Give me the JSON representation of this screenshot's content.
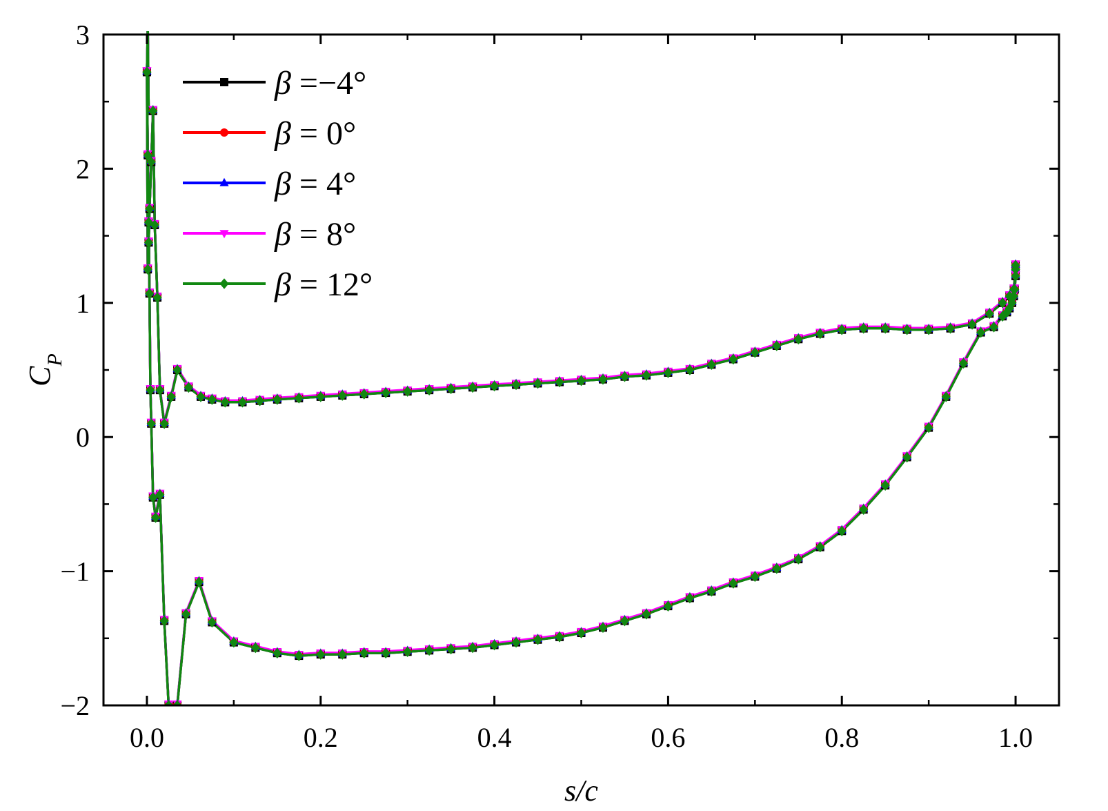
{
  "chart_data": {
    "type": "line",
    "title": "",
    "xlabel": "s/c",
    "ylabel": "C_P",
    "ylabel_main": "C",
    "ylabel_sub": "P",
    "xlim": [
      -0.05,
      1.05
    ],
    "ylim": [
      -2,
      3
    ],
    "x_ticks": [
      0.0,
      0.2,
      0.4,
      0.6,
      0.8,
      1.0
    ],
    "x_tick_labels": [
      "0.0",
      "0.2",
      "0.4",
      "0.6",
      "0.8",
      "1.0"
    ],
    "y_ticks": [
      -2,
      -1,
      0,
      1,
      2,
      3
    ],
    "y_tick_labels": [
      "−2",
      "−1",
      "0",
      "1",
      "2",
      "3"
    ],
    "grid": false,
    "legend_position": "top-left",
    "series": [
      {
        "name": "β =−4°",
        "legend_symbol": "β",
        "legend_rest": " =−4°",
        "color": "#000000",
        "marker": "square",
        "offset": 0.0
      },
      {
        "name": "β = 0°",
        "legend_symbol": "β",
        "legend_rest": " = 0°",
        "color": "#ff0000",
        "marker": "circle",
        "offset": 0.004
      },
      {
        "name": "β = 4°",
        "legend_symbol": "β",
        "legend_rest": " = 4°",
        "color": "#0000ff",
        "marker": "triangle-up",
        "offset": 0.008
      },
      {
        "name": "β = 8°",
        "legend_symbol": "β",
        "legend_rest": " = 8°",
        "color": "#ff00ff",
        "marker": "triangle-down",
        "offset": 0.012
      },
      {
        "name": "β = 12°",
        "legend_symbol": "β",
        "legend_rest": " = 12°",
        "color": "#118811",
        "marker": "diamond",
        "offset": 0.0
      }
    ],
    "curve_x": [
      1.0,
      1.0,
      0.999,
      0.998,
      0.996,
      0.993,
      0.99,
      0.985,
      0.975,
      0.96,
      0.94,
      0.92,
      0.9,
      0.875,
      0.85,
      0.825,
      0.8,
      0.775,
      0.75,
      0.725,
      0.7,
      0.675,
      0.65,
      0.625,
      0.6,
      0.575,
      0.55,
      0.525,
      0.5,
      0.475,
      0.45,
      0.425,
      0.4,
      0.375,
      0.35,
      0.325,
      0.3,
      0.275,
      0.25,
      0.225,
      0.2,
      0.175,
      0.15,
      0.125,
      0.1,
      0.075,
      0.06,
      0.045,
      0.035,
      0.025,
      0.02,
      0.015,
      0.01,
      0.007,
      0.005,
      0.004,
      0.003,
      0.002,
      0.001,
      0.0,
      0.0,
      0.001,
      0.002,
      0.003,
      0.005,
      0.007,
      0.009,
      0.012,
      0.015,
      0.02,
      0.028,
      0.035,
      0.048,
      0.062,
      0.075,
      0.09,
      0.11,
      0.13,
      0.15,
      0.175,
      0.2,
      0.225,
      0.25,
      0.275,
      0.3,
      0.325,
      0.35,
      0.375,
      0.4,
      0.425,
      0.45,
      0.475,
      0.5,
      0.525,
      0.55,
      0.575,
      0.6,
      0.625,
      0.65,
      0.675,
      0.7,
      0.725,
      0.75,
      0.775,
      0.8,
      0.825,
      0.85,
      0.875,
      0.9,
      0.925,
      0.95,
      0.97,
      0.985,
      0.993,
      0.998,
      1.0
    ],
    "curve_y": [
      1.28,
      1.2,
      1.1,
      1.05,
      1.0,
      0.96,
      0.93,
      0.9,
      0.82,
      0.78,
      0.55,
      0.3,
      0.07,
      -0.15,
      -0.36,
      -0.54,
      -0.7,
      -0.82,
      -0.91,
      -0.98,
      -1.04,
      -1.09,
      -1.15,
      -1.2,
      -1.26,
      -1.32,
      -1.37,
      -1.42,
      -1.46,
      -1.49,
      -1.51,
      -1.53,
      -1.55,
      -1.57,
      -1.58,
      -1.59,
      -1.6,
      -1.61,
      -1.61,
      -1.62,
      -1.62,
      -1.63,
      -1.61,
      -1.57,
      -1.53,
      -1.38,
      -1.08,
      -1.32,
      -2.0,
      -2.0,
      -1.37,
      -0.43,
      -0.6,
      -0.45,
      0.1,
      0.35,
      1.07,
      1.6,
      2.1,
      2.72,
      2.72,
      1.25,
      1.45,
      1.7,
      2.05,
      2.43,
      1.58,
      1.04,
      0.35,
      0.1,
      0.3,
      0.5,
      0.37,
      0.3,
      0.28,
      0.26,
      0.26,
      0.27,
      0.28,
      0.29,
      0.3,
      0.31,
      0.32,
      0.33,
      0.34,
      0.35,
      0.36,
      0.37,
      0.38,
      0.39,
      0.4,
      0.41,
      0.42,
      0.43,
      0.45,
      0.46,
      0.48,
      0.5,
      0.54,
      0.58,
      0.63,
      0.68,
      0.73,
      0.77,
      0.8,
      0.81,
      0.81,
      0.8,
      0.8,
      0.81,
      0.84,
      0.92,
      1.0,
      1.05,
      1.1,
      1.25
    ],
    "upper_spike_x": [
      0.0,
      0.001,
      0.002
    ],
    "upper_spike_y": [
      2.72,
      3.05,
      2.4
    ]
  }
}
